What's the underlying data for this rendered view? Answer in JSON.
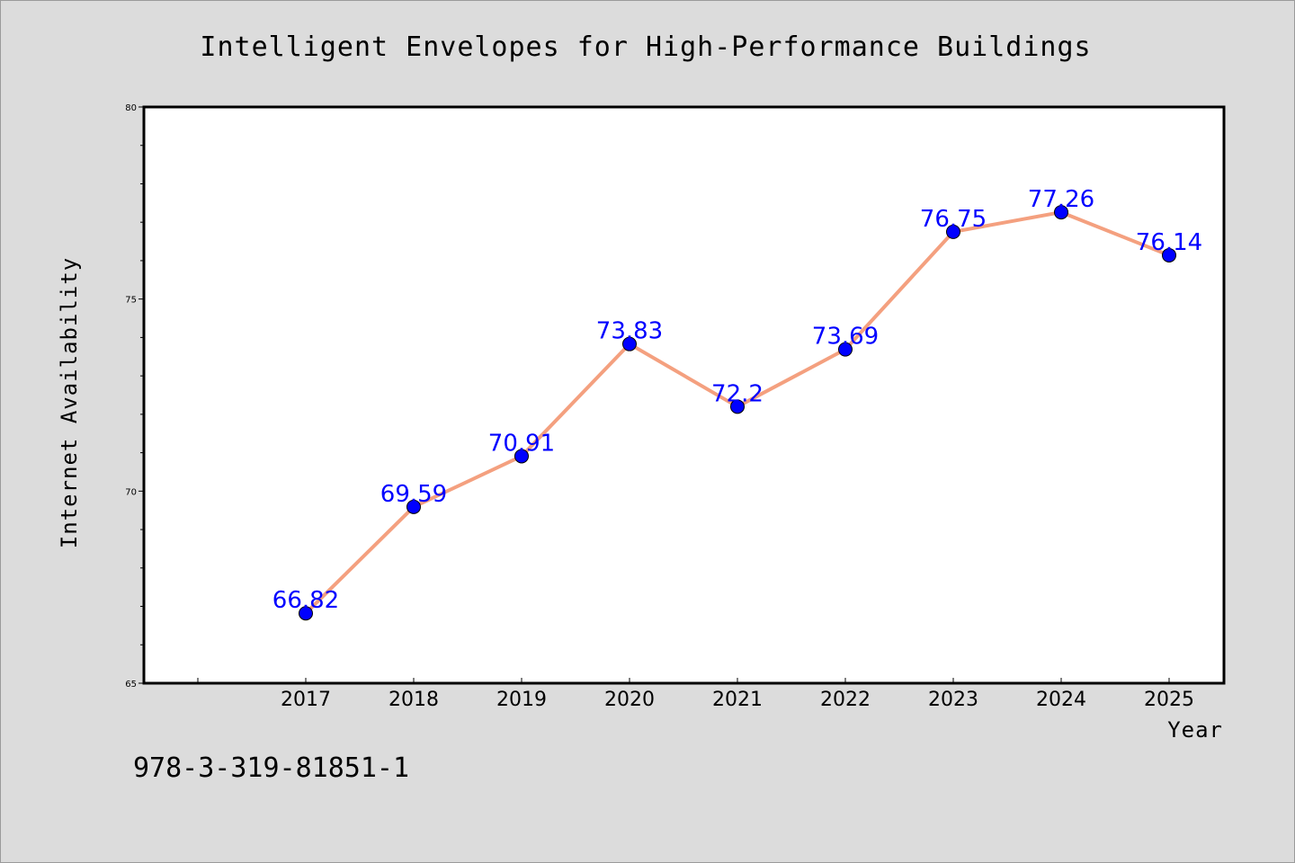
{
  "page": {
    "background": "#dcdcdc",
    "footer_code": "978-3-319-81851-1"
  },
  "chart_data": {
    "type": "line",
    "title": "Intelligent Envelopes for High-Performance Buildings",
    "xlabel": "Year",
    "ylabel": "Internet Availability",
    "categories": [
      "2017",
      "2018",
      "2019",
      "2020",
      "2021",
      "2022",
      "2023",
      "2024",
      "2025"
    ],
    "series": [
      {
        "values": [
          66.82,
          69.59,
          70.91,
          73.83,
          72.2,
          73.69,
          76.75,
          77.26,
          76.14
        ],
        "line_color": "#f4a07f",
        "marker_color": "#0000ff"
      }
    ],
    "ylim": [
      65,
      80
    ],
    "yticks": [
      65,
      70,
      75,
      80
    ],
    "ytick_labels": [
      "65",
      "70",
      "75",
      "80"
    ],
    "data_labels_shown": true,
    "data_label_color": "#0000ff",
    "plot_background": "#ffffff",
    "grid": false,
    "legend": "none"
  }
}
